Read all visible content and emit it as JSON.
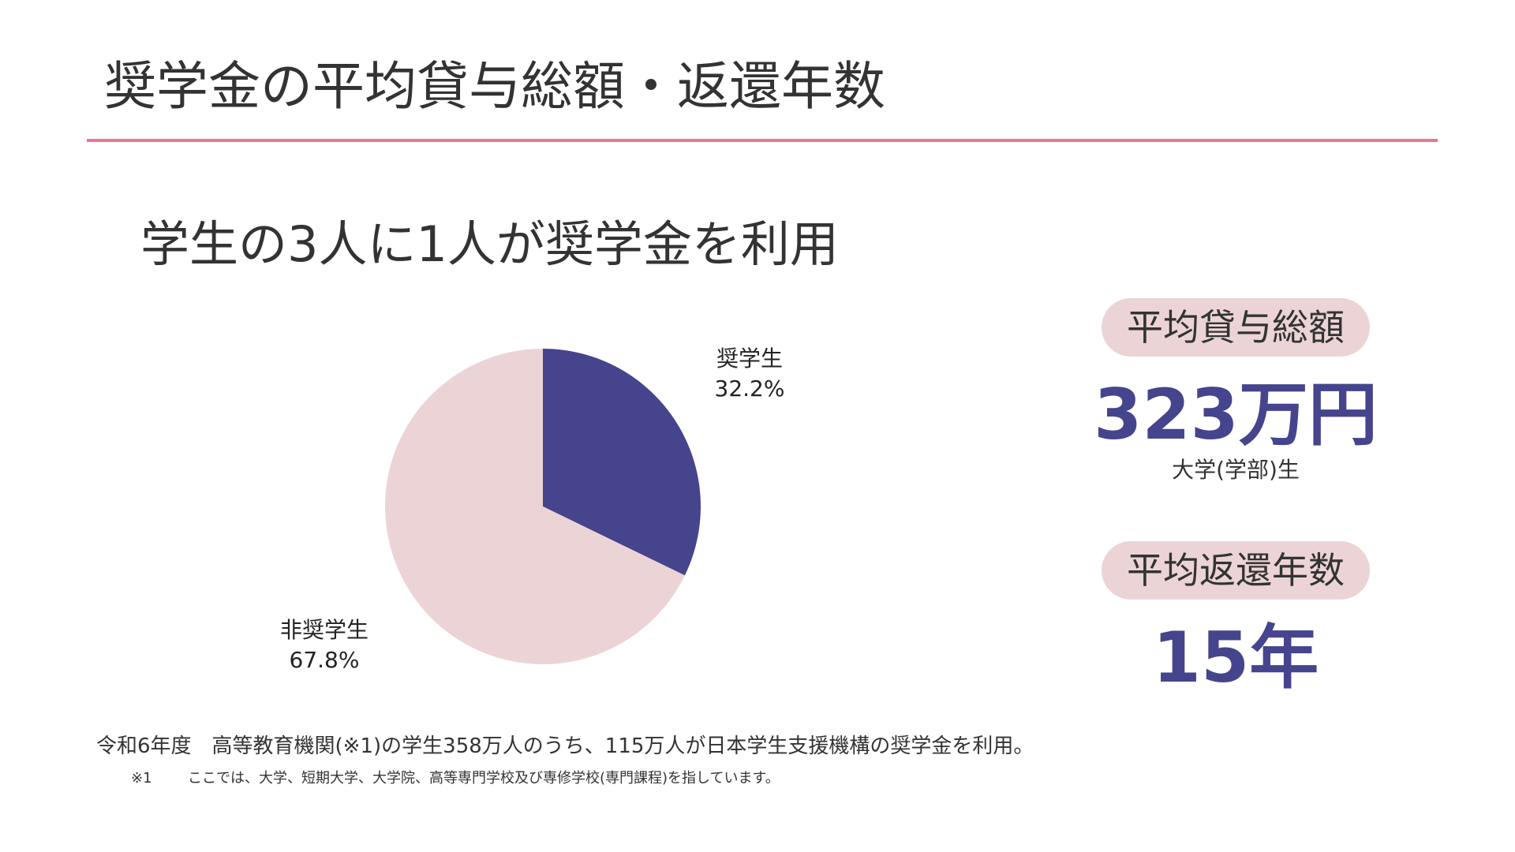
{
  "header": {
    "title": "奨学金の平均貸与総額・返還年数",
    "rule_color": "#ec7694"
  },
  "subtitle": "学生の3人に1人が奨学金を利用",
  "chart_data": {
    "type": "pie",
    "title": "",
    "categories": [
      "奨学生",
      "非奨学生"
    ],
    "values": [
      32.2,
      67.8
    ],
    "value_labels": [
      "32.2%",
      "67.8%"
    ],
    "colors": [
      "#45448d",
      "#ecd4d6"
    ],
    "start": "top (12 o'clock), clockwise",
    "legend": "none (labels beside slices)"
  },
  "stats": {
    "loan": {
      "label": "平均貸与総額",
      "value": "323万円",
      "note": "大学(学部)生"
    },
    "years": {
      "label": "平均返還年数",
      "value": "15年"
    },
    "value_color": "#45448d",
    "pill_color": "#ecd4d6"
  },
  "footnote": {
    "main": "令和6年度　高等教育機関(※1)の学生358万人のうち、115万人が日本学生支援機構の奨学金を利用。",
    "sub_mark": "※1",
    "sub_text": "ここでは、大学、短期大学、大学院、高等専門学校及び専修学校(専門課程)を指しています。"
  }
}
